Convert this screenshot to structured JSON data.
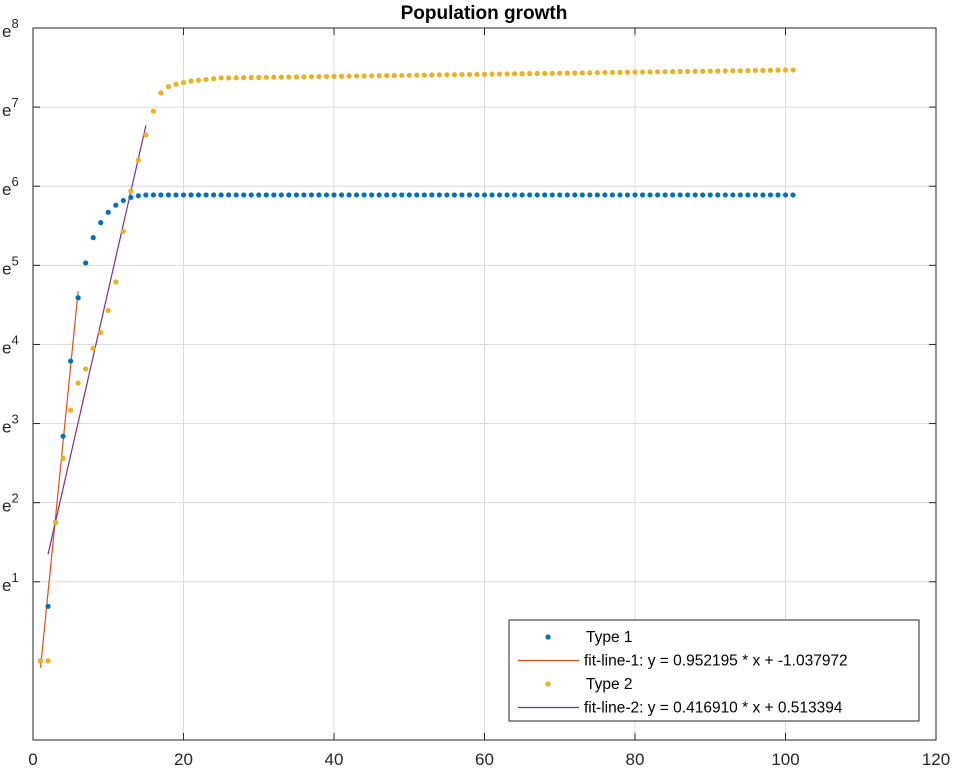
{
  "chart_data": {
    "type": "scatter",
    "title": "Population growth",
    "xlabel": "",
    "ylabel": "",
    "xlim": [
      0,
      120
    ],
    "ylim": [
      -1,
      8
    ],
    "y_scale": "log (natural)",
    "grid": true,
    "x_ticks": [
      0,
      20,
      40,
      60,
      80,
      100,
      120
    ],
    "y_ticks": [
      {
        "base": "e",
        "exp": "1"
      },
      {
        "base": "e",
        "exp": "2"
      },
      {
        "base": "e",
        "exp": "3"
      },
      {
        "base": "e",
        "exp": "4"
      },
      {
        "base": "e",
        "exp": "5"
      },
      {
        "base": "e",
        "exp": "6"
      },
      {
        "base": "e",
        "exp": "7"
      },
      {
        "base": "e",
        "exp": "8"
      }
    ],
    "legend_position": "bottom-right",
    "legend": [
      {
        "label": "Type 1",
        "kind": "marker",
        "color": "#0072BD"
      },
      {
        "label": "fit-line-1: y = 0.952195 * x + -1.037972",
        "kind": "line",
        "color": "#D95319"
      },
      {
        "label": "Type 2",
        "kind": "marker",
        "color": "#EDB120"
      },
      {
        "label": "fit-line-2: y = 0.416910 * x + 0.513394",
        "kind": "line",
        "color": "#7E2F8E"
      }
    ],
    "series": [
      {
        "name": "Type 1",
        "kind": "scatter",
        "color": "#0072BD",
        "x": [
          1,
          2,
          3,
          4,
          5,
          6,
          7,
          8,
          9,
          10,
          11,
          12,
          13,
          14
        ],
        "y": [
          0.0,
          0.69,
          1.75,
          2.84,
          3.79,
          4.59,
          5.03,
          5.35,
          5.54,
          5.67,
          5.76,
          5.82,
          5.86,
          5.88
        ],
        "plateau_from_x": 15,
        "plateau_to_x": 101,
        "plateau_value": 5.89
      },
      {
        "name": "fit-line-1",
        "kind": "line",
        "color": "#D95319",
        "x": [
          1,
          6
        ],
        "y": [
          -0.085777,
          4.675198
        ]
      },
      {
        "name": "Type 2",
        "kind": "scatter",
        "color": "#EDB120",
        "x": [
          1,
          2,
          3,
          4,
          5,
          6,
          7,
          8,
          9,
          10,
          11,
          12,
          13,
          14,
          15,
          16,
          17,
          18,
          19,
          20,
          21,
          22,
          23,
          24,
          25
        ],
        "y": [
          0.0,
          0.0,
          1.75,
          2.56,
          3.17,
          3.51,
          3.69,
          3.95,
          4.15,
          4.43,
          4.79,
          5.43,
          5.94,
          6.33,
          6.65,
          6.95,
          7.18,
          7.26,
          7.29,
          7.31,
          7.33,
          7.34,
          7.35,
          7.36,
          7.37
        ],
        "plateau_from_x": 26,
        "plateau_to_x": 101,
        "plateau_start": 7.37,
        "plateau_end": 7.47
      },
      {
        "name": "fit-line-2",
        "kind": "line",
        "color": "#7E2F8E",
        "x": [
          2,
          15
        ],
        "y": [
          1.347214,
          6.767044
        ]
      }
    ]
  }
}
